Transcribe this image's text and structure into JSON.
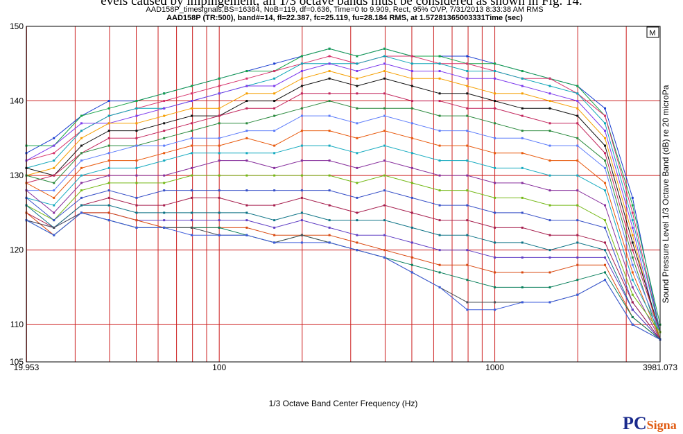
{
  "cropped_text": "evels caused by impingement, all 1/3 octave bands must be considered as shown in Fig. 14.",
  "logo": {
    "prefix": "PC",
    "suffix": "Signa"
  },
  "colors": {
    "grid": "#cc1f1f",
    "border": "#000000",
    "background": "#ffffff"
  },
  "chart_data": {
    "type": "line",
    "title": "AAD158P_timesignals,BS=16384, NoB=119, df=0.636, Time=0 to 9.909, Rect, 95% OVP, 7/31/2013 8:33:38 AM   RMS",
    "subtitle": "AAD158P (TR:500), band#=14, fl=22.387, fc=25.119, fu=28.184 RMS, at 1.57281365003331Time (sec)",
    "xlabel": "1/3 Octave Band Center Frequency (Hz)",
    "ylabel": "Sound Pressure Level 1/3 Octave Band (dB) re 20 microPa",
    "corner_label": "M",
    "x_scale": "log",
    "xlim": [
      19.953,
      3981.073
    ],
    "ylim": [
      105,
      150
    ],
    "x_tick_labels": [
      "19.953",
      "100",
      "1000",
      "3981.073"
    ],
    "x_tick_values": [
      19.953,
      100,
      1000,
      3981.073
    ],
    "y_tick_labels": [
      "105",
      "110",
      "120",
      "130",
      "140",
      "150"
    ],
    "y_tick_values": [
      105,
      110,
      120,
      130,
      140,
      150
    ],
    "grid": true,
    "x": [
      19.953,
      25.119,
      31.623,
      39.811,
      50.119,
      63.096,
      79.433,
      100,
      125.89,
      158.49,
      199.53,
      251.19,
      316.23,
      398.11,
      501.19,
      630.96,
      794.33,
      1000,
      1258.9,
      1584.9,
      1995.3,
      2511.9,
      3162.3,
      3981.1
    ],
    "series": [
      {
        "values": [
          133,
          135,
          138,
          140,
          140,
          141,
          142,
          143,
          144,
          145,
          146,
          147,
          146,
          147,
          146,
          146,
          146,
          145,
          144,
          143,
          142,
          139,
          127,
          109
        ]
      },
      {
        "values": [
          134,
          134,
          138,
          139,
          140,
          141,
          142,
          143,
          144,
          144,
          146,
          147,
          146,
          147,
          146,
          146,
          145,
          145,
          144,
          143,
          142,
          138,
          126,
          110
        ]
      },
      {
        "values": [
          132,
          133,
          136,
          138,
          139,
          140,
          141,
          142,
          143,
          144,
          145,
          146,
          145,
          146,
          146,
          145,
          145,
          144,
          143,
          143,
          141,
          138,
          125,
          109
        ]
      },
      {
        "values": [
          131,
          132,
          136,
          138,
          139,
          139,
          140,
          141,
          142,
          143,
          145,
          145,
          145,
          146,
          145,
          145,
          144,
          144,
          143,
          142,
          141,
          137,
          124,
          109
        ]
      },
      {
        "values": [
          132,
          134,
          137,
          137,
          138,
          139,
          140,
          141,
          142,
          142,
          144,
          145,
          144,
          145,
          144,
          144,
          143,
          143,
          142,
          141,
          140,
          136,
          123,
          108
        ]
      },
      {
        "values": [
          130,
          131,
          135,
          137,
          137,
          138,
          139,
          139,
          141,
          141,
          143,
          144,
          143,
          144,
          143,
          143,
          142,
          141,
          141,
          140,
          139,
          135,
          122,
          108
        ]
      },
      {
        "values": [
          131,
          130,
          134,
          136,
          136,
          137,
          138,
          138,
          140,
          140,
          142,
          143,
          142,
          143,
          142,
          141,
          141,
          140,
          139,
          139,
          138,
          134,
          121,
          109
        ]
      },
      {
        "values": [
          129,
          130,
          133,
          135,
          135,
          136,
          137,
          138,
          139,
          139,
          141,
          141,
          141,
          141,
          140,
          140,
          139,
          139,
          138,
          137,
          137,
          133,
          120,
          109
        ]
      },
      {
        "values": [
          130,
          129,
          133,
          134,
          134,
          135,
          136,
          137,
          137,
          138,
          139,
          140,
          139,
          139,
          139,
          138,
          138,
          137,
          136,
          136,
          135,
          132,
          119,
          108
        ]
      },
      {
        "values": [
          128,
          128,
          132,
          133,
          134,
          134,
          135,
          135,
          136,
          136,
          138,
          138,
          137,
          138,
          137,
          136,
          136,
          135,
          135,
          134,
          134,
          131,
          118,
          109
        ]
      },
      {
        "values": [
          129,
          127,
          131,
          132,
          132,
          133,
          134,
          134,
          135,
          134,
          136,
          136,
          135,
          136,
          135,
          134,
          134,
          133,
          133,
          132,
          132,
          129,
          117,
          108
        ]
      },
      {
        "values": [
          127,
          126,
          130,
          131,
          131,
          132,
          133,
          133,
          133,
          133,
          134,
          134,
          133,
          134,
          133,
          132,
          132,
          131,
          131,
          130,
          130,
          128,
          116,
          109
        ]
      },
      {
        "values": [
          128,
          125,
          129,
          130,
          130,
          130,
          131,
          132,
          132,
          131,
          132,
          132,
          131,
          132,
          131,
          130,
          130,
          129,
          129,
          128,
          128,
          126,
          115,
          108
        ]
      },
      {
        "values": [
          126,
          124,
          128,
          129,
          129,
          129,
          130,
          130,
          130,
          130,
          130,
          130,
          129,
          130,
          129,
          128,
          128,
          127,
          127,
          126,
          126,
          124,
          114,
          109
        ]
      },
      {
        "values": [
          127,
          124,
          127,
          128,
          127,
          128,
          128,
          128,
          128,
          128,
          128,
          128,
          127,
          128,
          127,
          126,
          126,
          125,
          125,
          124,
          124,
          123,
          113,
          108
        ]
      },
      {
        "values": [
          125,
          123,
          126,
          127,
          126,
          126,
          127,
          127,
          126,
          126,
          127,
          126,
          125,
          126,
          125,
          124,
          124,
          123,
          123,
          122,
          122,
          121,
          113,
          108
        ]
      },
      {
        "values": [
          126,
          123,
          126,
          126,
          125,
          125,
          125,
          125,
          125,
          124,
          125,
          124,
          124,
          124,
          123,
          122,
          122,
          121,
          121,
          120,
          121,
          120,
          112,
          108
        ]
      },
      {
        "values": [
          124,
          123,
          125,
          125,
          124,
          124,
          124,
          124,
          124,
          123,
          124,
          123,
          122,
          122,
          121,
          120,
          120,
          119,
          119,
          119,
          119,
          119,
          112,
          108
        ]
      },
      {
        "values": [
          125,
          122,
          125,
          125,
          124,
          123,
          123,
          123,
          123,
          122,
          122,
          122,
          121,
          120,
          119,
          118,
          118,
          117,
          117,
          117,
          118,
          118,
          111,
          108
        ]
      },
      {
        "values": [
          124,
          122,
          125,
          124,
          123,
          123,
          123,
          123,
          122,
          121,
          122,
          121,
          120,
          119,
          118,
          117,
          116,
          115,
          115,
          115,
          116,
          117,
          111,
          108
        ]
      },
      {
        "values": [
          124,
          123,
          125,
          124,
          123,
          123,
          123,
          122,
          122,
          121,
          122,
          121,
          120,
          119,
          117,
          115,
          113,
          113,
          113,
          113,
          114,
          116,
          110,
          108
        ]
      },
      {
        "values": [
          124,
          122,
          125,
          124,
          123,
          123,
          122,
          122,
          122,
          121,
          121,
          121,
          120,
          119,
          117,
          115,
          112,
          112,
          113,
          113,
          114,
          116,
          110,
          108
        ]
      }
    ]
  }
}
